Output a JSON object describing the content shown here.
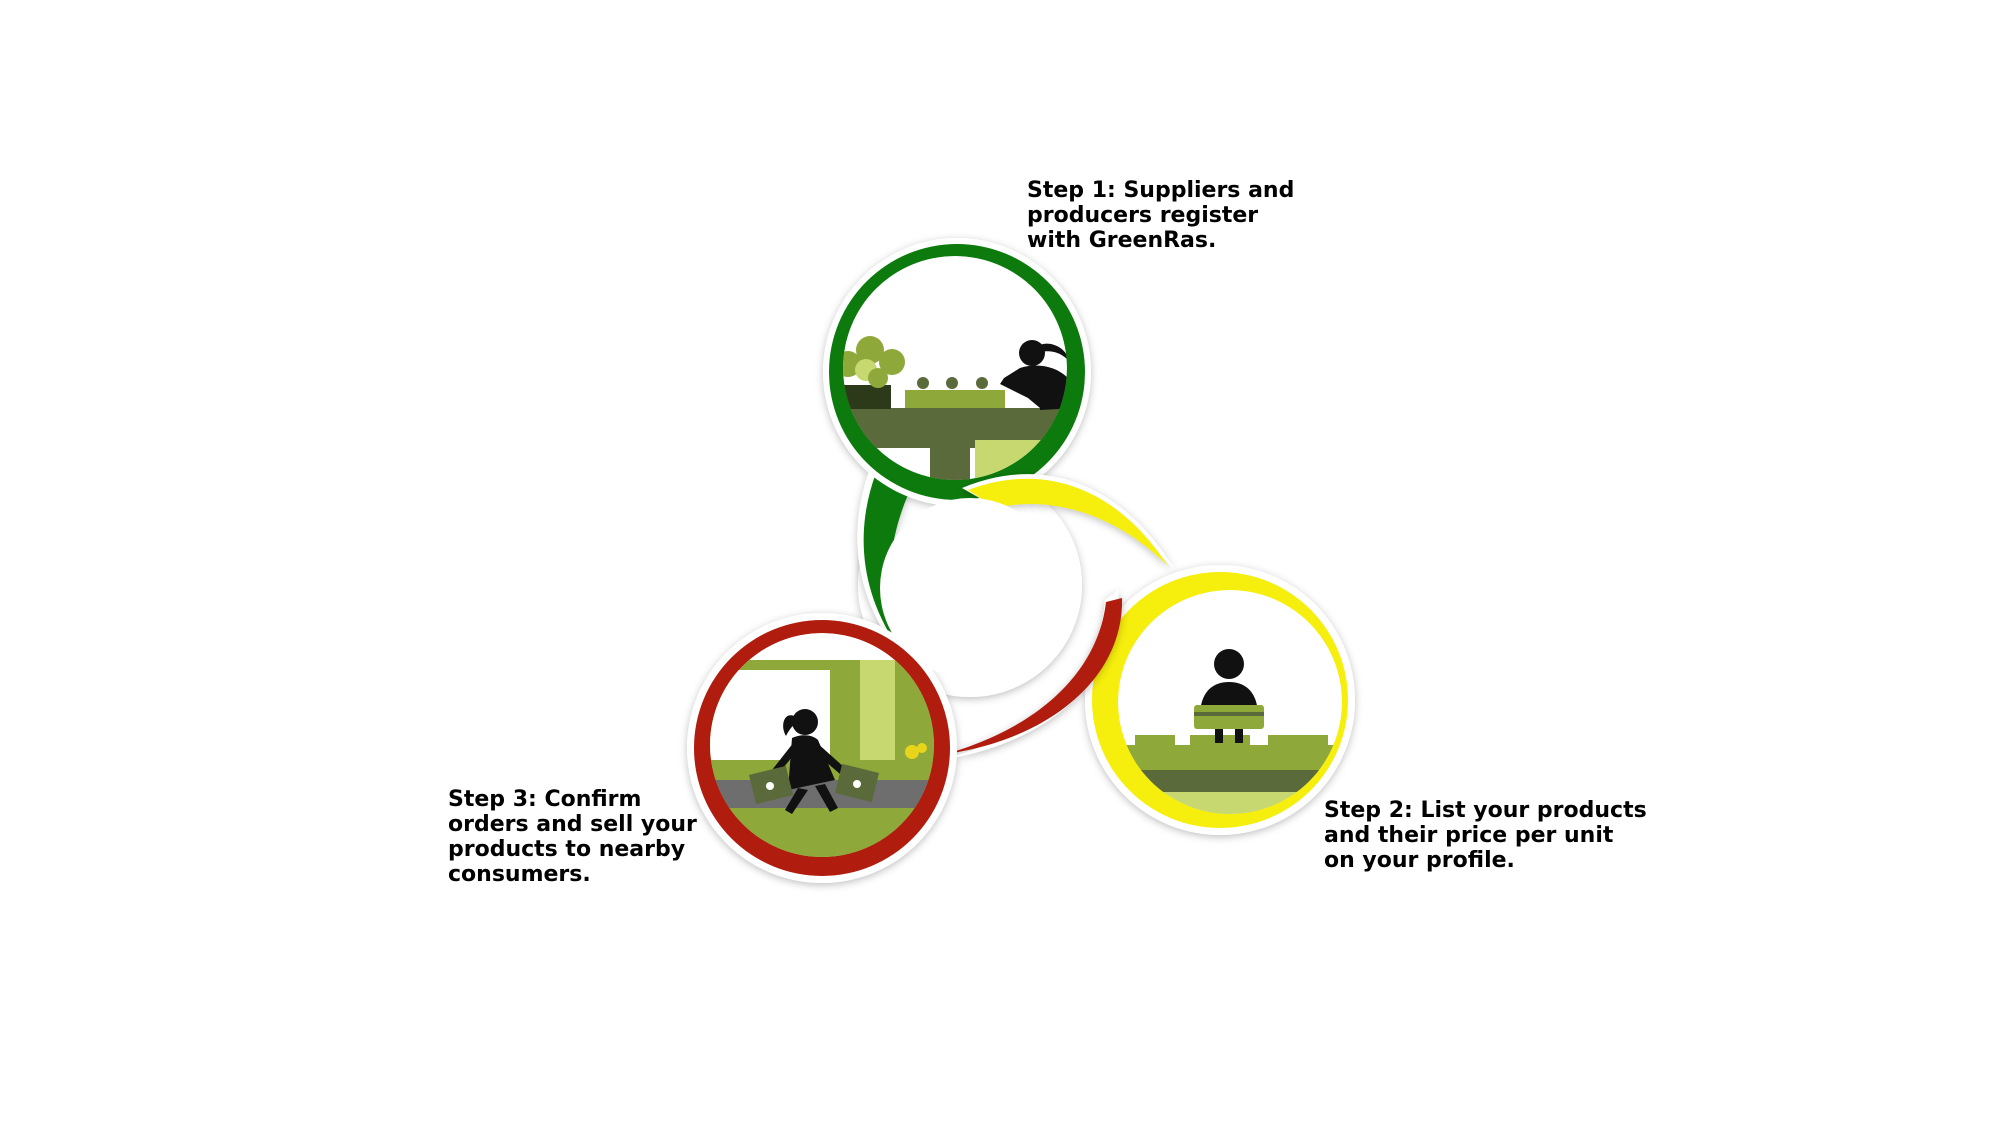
{
  "steps": [
    {
      "label": "Step 1: Suppliers and\nproducers register\nwith GreenRas.",
      "color": "#0a7a0a"
    },
    {
      "label": "Step 2: List your products\nand their price per unit\non your profile.",
      "color": "#f6ee10"
    },
    {
      "label": "Step 3: Confirm\norders and sell your\nproducts to nearby\nconsumers.",
      "color": "#b01b10"
    }
  ],
  "colors": {
    "dark_green": "#5b6a3a",
    "leaf_green": "#8fa83a",
    "light_green": "#c7d870",
    "silhouette": "#111111"
  },
  "icons": [
    "gardener-icon",
    "basket-carrier-icon",
    "shopper-icon"
  ]
}
